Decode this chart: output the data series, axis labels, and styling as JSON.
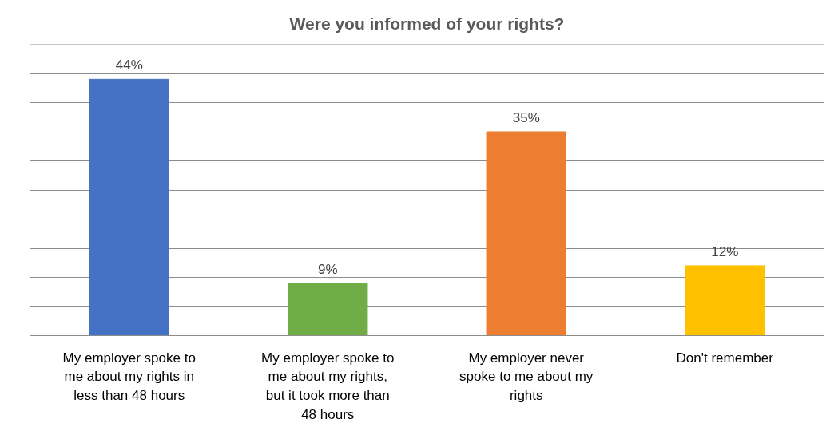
{
  "chart_data": {
    "type": "bar",
    "title": "Were you informed of your rights?",
    "categories": [
      "My employer spoke to me about my rights in less than 48 hours",
      "My employer spoke to me about my rights, but it took more than 48 hours",
      "My employer never spoke to me about my rights",
      "Don't remember"
    ],
    "values": [
      44,
      9,
      35,
      12
    ],
    "value_labels": [
      "44%",
      "9%",
      "35%",
      "12%"
    ],
    "colors": [
      "#4472c4",
      "#70ad47",
      "#ed7d31",
      "#ffc000"
    ],
    "ylim": [
      0,
      50
    ],
    "yticks": [
      0,
      5,
      10,
      15,
      20,
      25,
      30,
      35,
      40,
      45
    ],
    "tick_labels": "x",
    "grid": "y"
  }
}
